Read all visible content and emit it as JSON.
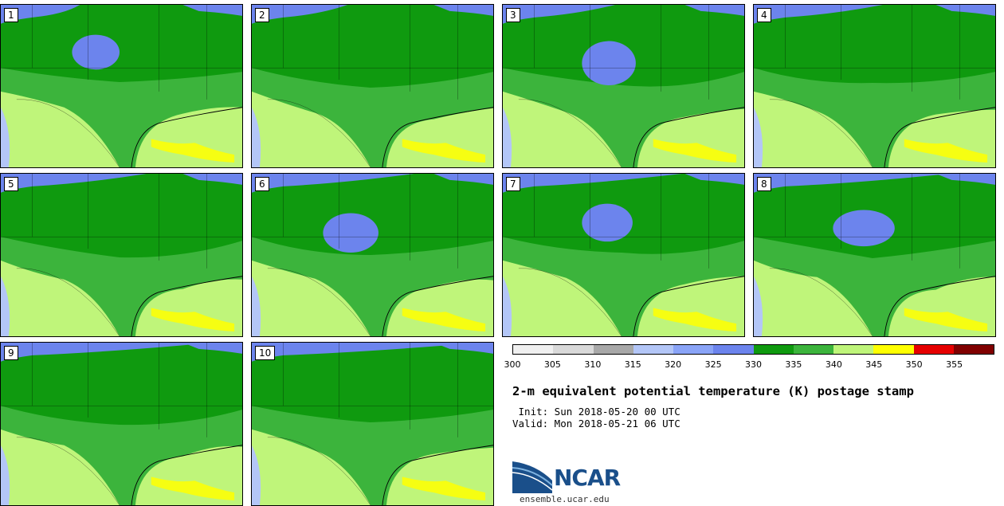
{
  "panels": [
    {
      "label": "1",
      "blob": true
    },
    {
      "label": "2",
      "blob": false
    },
    {
      "label": "3",
      "blob": true
    },
    {
      "label": "4",
      "blob": false
    },
    {
      "label": "5",
      "blob": false
    },
    {
      "label": "6",
      "blob": true
    },
    {
      "label": "7",
      "blob": true
    },
    {
      "label": "8",
      "blob": true
    },
    {
      "label": "9",
      "blob": false
    },
    {
      "label": "10",
      "blob": false
    }
  ],
  "colorbar": {
    "colors": [
      "#f0f0f0",
      "#d9d9d9",
      "#a8a8a8",
      "#b3c6f7",
      "#8aa4f7",
      "#6c84ed",
      "#0f9a0f",
      "#3cb43c",
      "#bff57a",
      "#ffff00",
      "#e60000",
      "#800000"
    ],
    "ticks": [
      "300",
      "305",
      "310",
      "315",
      "320",
      "325",
      "330",
      "335",
      "340",
      "345",
      "350",
      "355"
    ]
  },
  "title": "2-m equivalent potential temperature (K) postage stamp",
  "init": " Init: Sun 2018-05-20 00 UTC",
  "valid": "Valid: Mon 2018-05-21 06 UTC",
  "logo": {
    "text": "NCAR"
  },
  "site": "ensemble.ucar.edu"
}
